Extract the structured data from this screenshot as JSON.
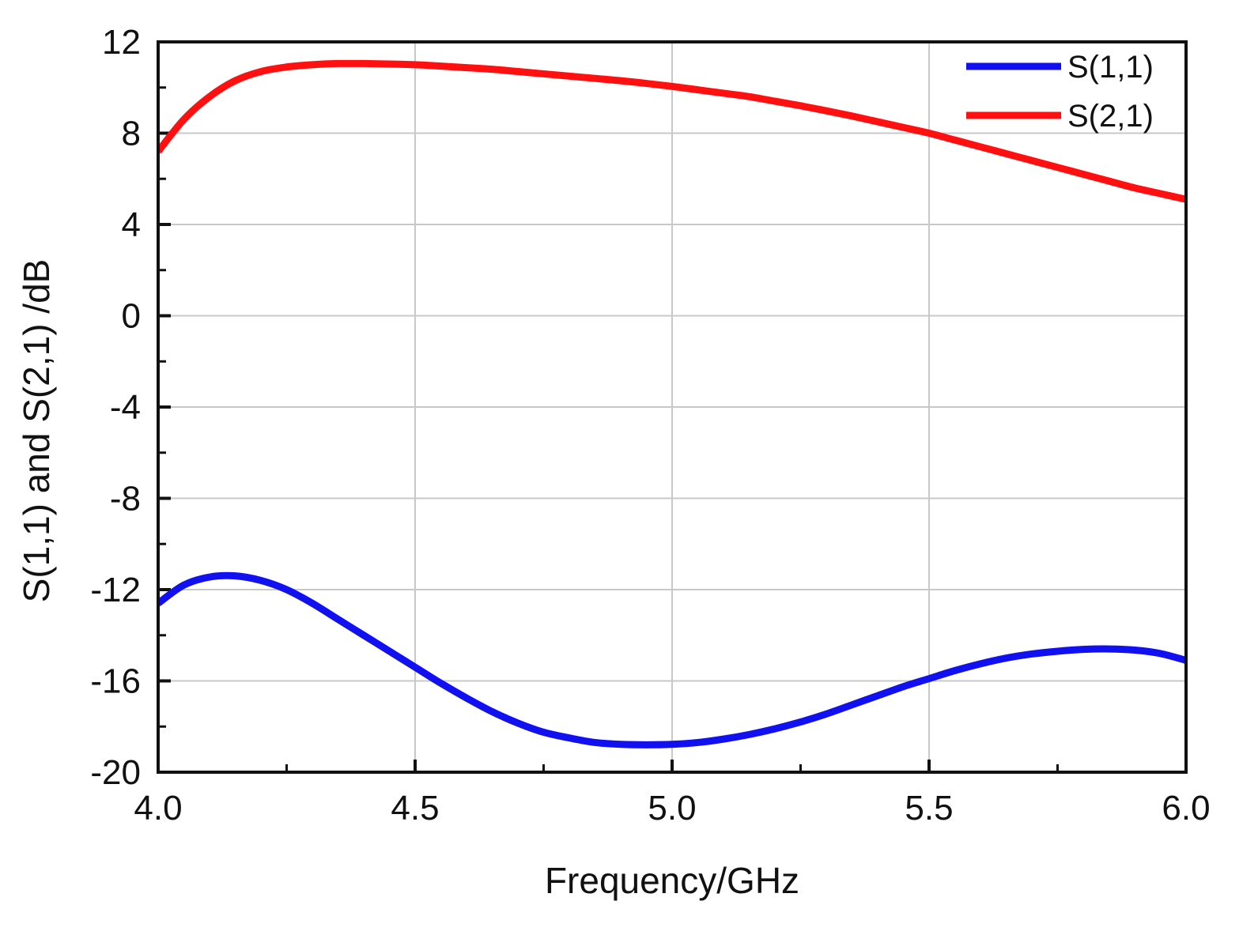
{
  "chart_data": {
    "type": "line",
    "title": "",
    "xlabel": "Frequency/GHz",
    "ylabel": "S(1,1) and S(2,1) /dB",
    "xlim": [
      4.0,
      6.0
    ],
    "ylim": [
      -20,
      12
    ],
    "x_ticks": [
      4.0,
      4.5,
      5.0,
      5.5,
      6.0
    ],
    "x_tick_labels": [
      "4.0",
      "4.5",
      "5.0",
      "5.5",
      "6.0"
    ],
    "y_ticks": [
      -20,
      -16,
      -12,
      -8,
      -4,
      0,
      4,
      8,
      12
    ],
    "y_tick_labels": [
      "-20",
      "-16",
      "-12",
      "-8",
      "-4",
      "0",
      "4",
      "8",
      "12"
    ],
    "grid": true,
    "legend_position": "top-right",
    "series": [
      {
        "name": "S(1,1)",
        "color": "#1010f0",
        "x": [
          4.0,
          4.05,
          4.1,
          4.15,
          4.2,
          4.25,
          4.3,
          4.35,
          4.4,
          4.45,
          4.5,
          4.55,
          4.6,
          4.65,
          4.7,
          4.75,
          4.8,
          4.85,
          4.9,
          4.95,
          5.0,
          5.05,
          5.1,
          5.15,
          5.2,
          5.25,
          5.3,
          5.35,
          5.4,
          5.45,
          5.5,
          5.55,
          5.6,
          5.65,
          5.7,
          5.75,
          5.8,
          5.85,
          5.9,
          5.95,
          6.0
        ],
        "values": [
          -12.6,
          -11.8,
          -11.45,
          -11.4,
          -11.6,
          -12.0,
          -12.6,
          -13.3,
          -14.0,
          -14.7,
          -15.4,
          -16.1,
          -16.75,
          -17.35,
          -17.85,
          -18.25,
          -18.5,
          -18.7,
          -18.78,
          -18.8,
          -18.78,
          -18.7,
          -18.55,
          -18.35,
          -18.1,
          -17.8,
          -17.45,
          -17.05,
          -16.65,
          -16.25,
          -15.9,
          -15.55,
          -15.25,
          -15.0,
          -14.82,
          -14.7,
          -14.62,
          -14.6,
          -14.65,
          -14.8,
          -15.1
        ]
      },
      {
        "name": "S(2,1)",
        "color": "#ff1010",
        "x": [
          4.0,
          4.05,
          4.1,
          4.15,
          4.2,
          4.25,
          4.3,
          4.35,
          4.4,
          4.45,
          4.5,
          4.55,
          4.6,
          4.65,
          4.7,
          4.75,
          4.8,
          4.85,
          4.9,
          4.95,
          5.0,
          5.05,
          5.1,
          5.15,
          5.2,
          5.25,
          5.3,
          5.35,
          5.4,
          5.45,
          5.5,
          5.55,
          5.6,
          5.65,
          5.7,
          5.75,
          5.8,
          5.85,
          5.9,
          5.95,
          6.0
        ],
        "values": [
          7.2,
          8.6,
          9.6,
          10.3,
          10.7,
          10.9,
          11.0,
          11.05,
          11.05,
          11.03,
          11.0,
          10.94,
          10.87,
          10.8,
          10.7,
          10.6,
          10.5,
          10.4,
          10.3,
          10.18,
          10.05,
          9.9,
          9.75,
          9.6,
          9.4,
          9.2,
          8.98,
          8.75,
          8.5,
          8.25,
          8.0,
          7.7,
          7.4,
          7.1,
          6.8,
          6.5,
          6.2,
          5.9,
          5.6,
          5.35,
          5.1
        ]
      }
    ]
  }
}
